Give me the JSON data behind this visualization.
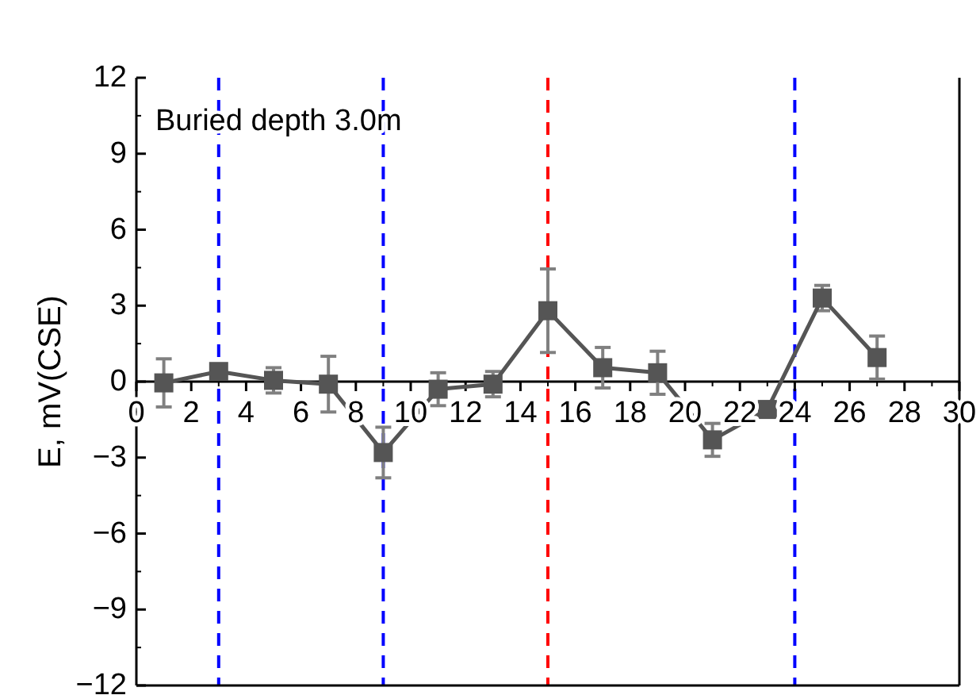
{
  "chart_data": {
    "type": "line",
    "ylabel": "E, mV(CSE)",
    "annotations": [
      "Buried depth 3.0m"
    ],
    "x": [
      1,
      3,
      5,
      7,
      9,
      11,
      13,
      15,
      17,
      19,
      21,
      23,
      25,
      27
    ],
    "series": [
      {
        "color": "#555555",
        "values": [
          -0.05,
          0.4,
          0.05,
          -0.1,
          -2.8,
          -0.3,
          -0.1,
          2.8,
          0.55,
          0.35,
          -2.3,
          -1.1,
          3.3,
          0.95
        ],
        "errors": [
          0.95,
          0.2,
          0.5,
          1.1,
          1.0,
          0.65,
          0.5,
          1.65,
          0.8,
          0.85,
          0.65,
          0.3,
          0.5,
          0.85
        ]
      }
    ],
    "xlim": [
      0,
      30
    ],
    "xticks": [
      0,
      2,
      4,
      6,
      8,
      10,
      12,
      14,
      16,
      18,
      20,
      22,
      24,
      26,
      28,
      30
    ],
    "ylim": [
      -12,
      12
    ],
    "yticks": [
      {
        "value": -12,
        "label": "−12"
      },
      {
        "value": -9,
        "label": "−9"
      },
      {
        "value": -6,
        "label": "−6"
      },
      {
        "value": -3,
        "label": "−3"
      },
      0,
      3,
      6,
      9,
      12
    ],
    "ref_lines": [
      {
        "axis": "x",
        "value": 3,
        "color": "#0000ff",
        "line_style": "dashed"
      },
      {
        "axis": "x",
        "value": 9,
        "color": "#0000ff",
        "line_style": "dashed"
      },
      {
        "axis": "x",
        "value": 15,
        "color": "#ff0000",
        "line_style": "dashed"
      },
      {
        "axis": "x",
        "value": 24,
        "color": "#0000ff",
        "line_style": "dashed"
      }
    ],
    "marker": "square",
    "line_style": "solid"
  }
}
